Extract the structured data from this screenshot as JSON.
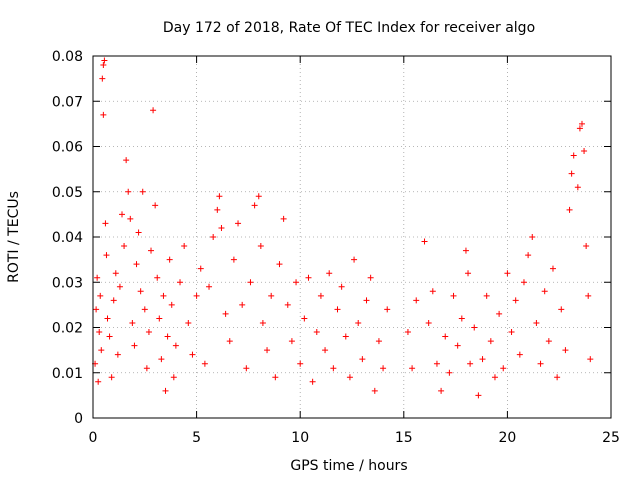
{
  "chart_data": {
    "type": "scatter",
    "title": "Day 172 of 2018, Rate Of TEC Index for receiver algo",
    "xlabel": "GPS time / hours",
    "ylabel": "ROTI / TECUs",
    "xlim": [
      0,
      25
    ],
    "ylim": [
      0,
      0.08
    ],
    "xticks": [
      "0",
      "5",
      "10",
      "15",
      "20",
      "25"
    ],
    "yticks": [
      "0",
      "0.01",
      "0.02",
      "0.03",
      "0.04",
      "0.05",
      "0.06",
      "0.07",
      "0.08"
    ],
    "grid": true,
    "marker": "+",
    "color": "#ff0000",
    "series": [
      {
        "points": [
          [
            0.1,
            0.012
          ],
          [
            0.15,
            0.024
          ],
          [
            0.2,
            0.031
          ],
          [
            0.25,
            0.008
          ],
          [
            0.3,
            0.019
          ],
          [
            0.35,
            0.027
          ],
          [
            0.4,
            0.015
          ],
          [
            0.45,
            0.075
          ],
          [
            0.5,
            0.078
          ],
          [
            0.5,
            0.067
          ],
          [
            0.55,
            0.079
          ],
          [
            0.6,
            0.043
          ],
          [
            0.65,
            0.036
          ],
          [
            0.7,
            0.022
          ],
          [
            0.8,
            0.018
          ],
          [
            0.9,
            0.009
          ],
          [
            1.0,
            0.026
          ],
          [
            1.1,
            0.032
          ],
          [
            1.2,
            0.014
          ],
          [
            1.3,
            0.029
          ],
          [
            1.4,
            0.045
          ],
          [
            1.5,
            0.038
          ],
          [
            1.6,
            0.057
          ],
          [
            1.7,
            0.05
          ],
          [
            1.8,
            0.044
          ],
          [
            1.9,
            0.021
          ],
          [
            2.0,
            0.016
          ],
          [
            2.1,
            0.034
          ],
          [
            2.2,
            0.041
          ],
          [
            2.3,
            0.028
          ],
          [
            2.4,
            0.05
          ],
          [
            2.5,
            0.024
          ],
          [
            2.6,
            0.011
          ],
          [
            2.7,
            0.019
          ],
          [
            2.8,
            0.037
          ],
          [
            2.9,
            0.068
          ],
          [
            3.0,
            0.047
          ],
          [
            3.1,
            0.031
          ],
          [
            3.2,
            0.022
          ],
          [
            3.3,
            0.013
          ],
          [
            3.4,
            0.027
          ],
          [
            3.5,
            0.006
          ],
          [
            3.6,
            0.018
          ],
          [
            3.7,
            0.035
          ],
          [
            3.8,
            0.025
          ],
          [
            3.9,
            0.009
          ],
          [
            4.0,
            0.016
          ],
          [
            4.2,
            0.03
          ],
          [
            4.4,
            0.038
          ],
          [
            4.6,
            0.021
          ],
          [
            4.8,
            0.014
          ],
          [
            5.0,
            0.027
          ],
          [
            5.2,
            0.033
          ],
          [
            5.4,
            0.012
          ],
          [
            5.6,
            0.029
          ],
          [
            5.8,
            0.04
          ],
          [
            6.0,
            0.046
          ],
          [
            6.1,
            0.049
          ],
          [
            6.2,
            0.042
          ],
          [
            6.4,
            0.023
          ],
          [
            6.6,
            0.017
          ],
          [
            6.8,
            0.035
          ],
          [
            7.0,
            0.043
          ],
          [
            7.2,
            0.025
          ],
          [
            7.4,
            0.011
          ],
          [
            7.6,
            0.03
          ],
          [
            7.8,
            0.047
          ],
          [
            8.0,
            0.049
          ],
          [
            8.1,
            0.038
          ],
          [
            8.2,
            0.021
          ],
          [
            8.4,
            0.015
          ],
          [
            8.6,
            0.027
          ],
          [
            8.8,
            0.009
          ],
          [
            9.0,
            0.034
          ],
          [
            9.2,
            0.044
          ],
          [
            9.4,
            0.025
          ],
          [
            9.6,
            0.017
          ],
          [
            9.8,
            0.03
          ],
          [
            10.0,
            0.012
          ],
          [
            10.2,
            0.022
          ],
          [
            10.4,
            0.031
          ],
          [
            10.6,
            0.008
          ],
          [
            10.8,
            0.019
          ],
          [
            11.0,
            0.027
          ],
          [
            11.2,
            0.015
          ],
          [
            11.4,
            0.032
          ],
          [
            11.6,
            0.011
          ],
          [
            11.8,
            0.024
          ],
          [
            12.0,
            0.029
          ],
          [
            12.2,
            0.018
          ],
          [
            12.4,
            0.009
          ],
          [
            12.6,
            0.035
          ],
          [
            12.8,
            0.021
          ],
          [
            13.0,
            0.013
          ],
          [
            13.2,
            0.026
          ],
          [
            13.4,
            0.031
          ],
          [
            13.6,
            0.006
          ],
          [
            13.8,
            0.017
          ],
          [
            14.0,
            0.011
          ],
          [
            14.2,
            0.024
          ],
          [
            15.2,
            0.019
          ],
          [
            15.4,
            0.011
          ],
          [
            15.6,
            0.026
          ],
          [
            16.0,
            0.039
          ],
          [
            16.2,
            0.021
          ],
          [
            16.4,
            0.028
          ],
          [
            16.6,
            0.012
          ],
          [
            16.8,
            0.006
          ],
          [
            17.0,
            0.018
          ],
          [
            17.2,
            0.01
          ],
          [
            17.4,
            0.027
          ],
          [
            17.6,
            0.016
          ],
          [
            17.8,
            0.022
          ],
          [
            18.0,
            0.037
          ],
          [
            18.1,
            0.032
          ],
          [
            18.2,
            0.012
          ],
          [
            18.4,
            0.02
          ],
          [
            18.6,
            0.005
          ],
          [
            18.8,
            0.013
          ],
          [
            19.0,
            0.027
          ],
          [
            19.2,
            0.017
          ],
          [
            19.4,
            0.009
          ],
          [
            19.6,
            0.023
          ],
          [
            19.8,
            0.011
          ],
          [
            20.0,
            0.032
          ],
          [
            20.2,
            0.019
          ],
          [
            20.4,
            0.026
          ],
          [
            20.6,
            0.014
          ],
          [
            20.8,
            0.03
          ],
          [
            21.0,
            0.036
          ],
          [
            21.2,
            0.04
          ],
          [
            21.4,
            0.021
          ],
          [
            21.6,
            0.012
          ],
          [
            21.8,
            0.028
          ],
          [
            22.0,
            0.017
          ],
          [
            22.2,
            0.033
          ],
          [
            22.4,
            0.009
          ],
          [
            22.6,
            0.024
          ],
          [
            22.8,
            0.015
          ],
          [
            23.0,
            0.046
          ],
          [
            23.1,
            0.054
          ],
          [
            23.2,
            0.058
          ],
          [
            23.4,
            0.051
          ],
          [
            23.5,
            0.064
          ],
          [
            23.6,
            0.065
          ],
          [
            23.7,
            0.059
          ],
          [
            23.8,
            0.038
          ],
          [
            23.9,
            0.027
          ],
          [
            24.0,
            0.013
          ]
        ]
      }
    ]
  }
}
